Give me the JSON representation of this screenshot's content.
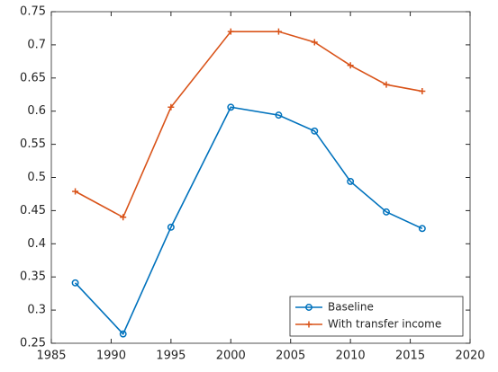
{
  "chart_data": {
    "type": "line",
    "x": [
      1987,
      1991,
      1995,
      2000,
      2004,
      2007,
      2010,
      2013,
      2016
    ],
    "series": [
      {
        "name": "Baseline",
        "color": "#0072bd",
        "marker": "circle",
        "values": [
          0.341,
          0.264,
          0.425,
          0.606,
          0.594,
          0.57,
          0.494,
          0.448,
          0.423
        ]
      },
      {
        "name": "With transfer income",
        "color": "#d95319",
        "marker": "plus",
        "values": [
          0.479,
          0.44,
          0.606,
          0.72,
          0.72,
          0.704,
          0.669,
          0.64,
          0.63
        ]
      }
    ],
    "xlim": [
      1985,
      2020
    ],
    "xticks": [
      1985,
      1990,
      1995,
      2000,
      2005,
      2010,
      2015,
      2020
    ],
    "ylim": [
      0.25,
      0.75
    ],
    "yticks": [
      0.25,
      0.3,
      0.35,
      0.4,
      0.45,
      0.5,
      0.55,
      0.6,
      0.65,
      0.7,
      0.75
    ],
    "grid": false,
    "legend": "lower-right"
  }
}
